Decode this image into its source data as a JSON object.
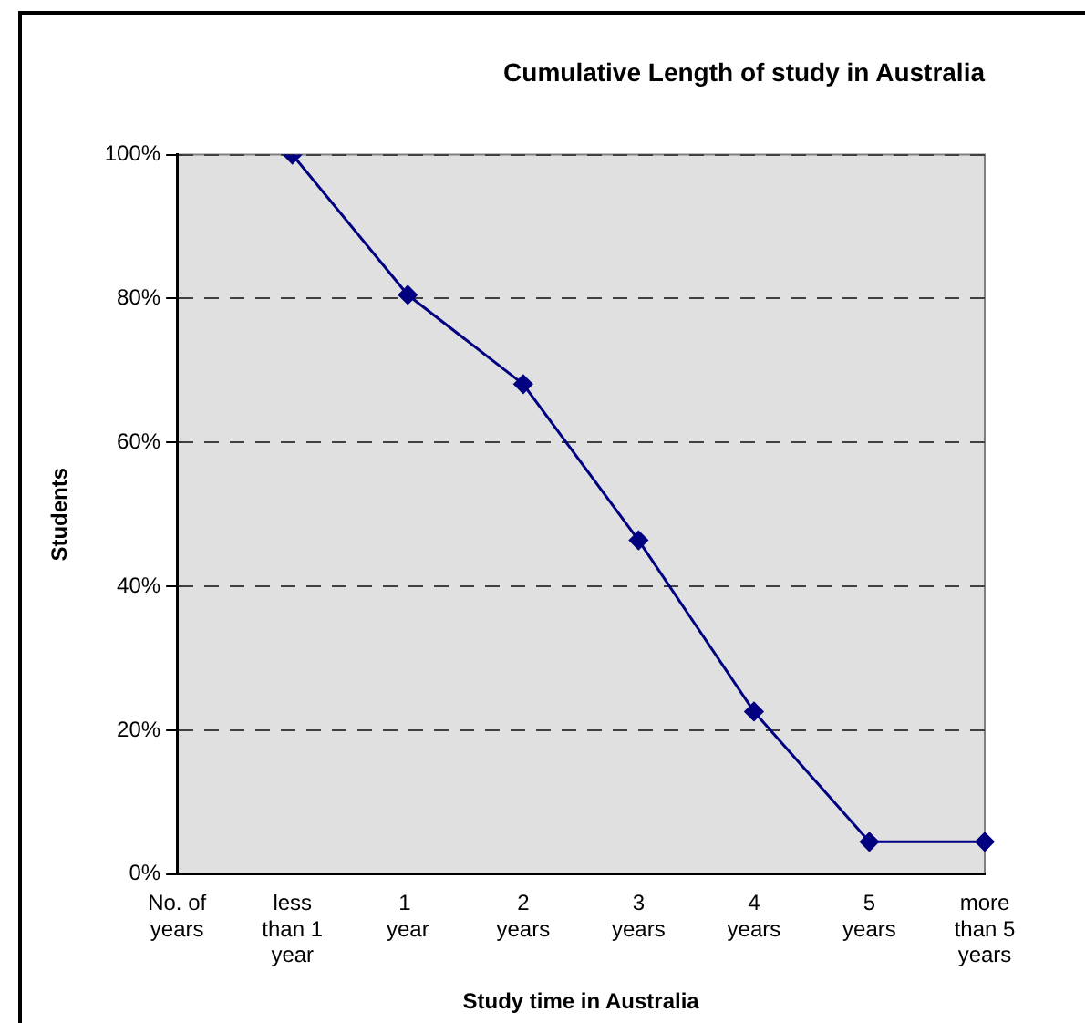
{
  "chart_data": {
    "type": "line",
    "title": "Cumulative Length of study in Australia",
    "xlabel": "Study time in Australia",
    "ylabel": "Students",
    "categories": [
      "No. of years",
      "less than 1 year",
      "1  year",
      "2 years",
      "3 years",
      "4 years",
      "5 years",
      "more than 5 years"
    ],
    "series": [
      {
        "color": "#000080",
        "values": [
          null,
          100,
          80.5,
          68.1,
          46.4,
          22.6,
          4.5,
          4.5
        ]
      }
    ],
    "ylim": [
      0,
      100
    ],
    "yticks": [
      {
        "value": 0,
        "label": "0%"
      },
      {
        "value": 20,
        "label": "20%"
      },
      {
        "value": 40,
        "label": "40%"
      },
      {
        "value": 60,
        "label": "60%"
      },
      {
        "value": 80,
        "label": "80%"
      },
      {
        "value": 100,
        "label": "100%"
      }
    ],
    "grid": "y",
    "legend": false,
    "marker": "diamond",
    "line_style": "solid"
  }
}
